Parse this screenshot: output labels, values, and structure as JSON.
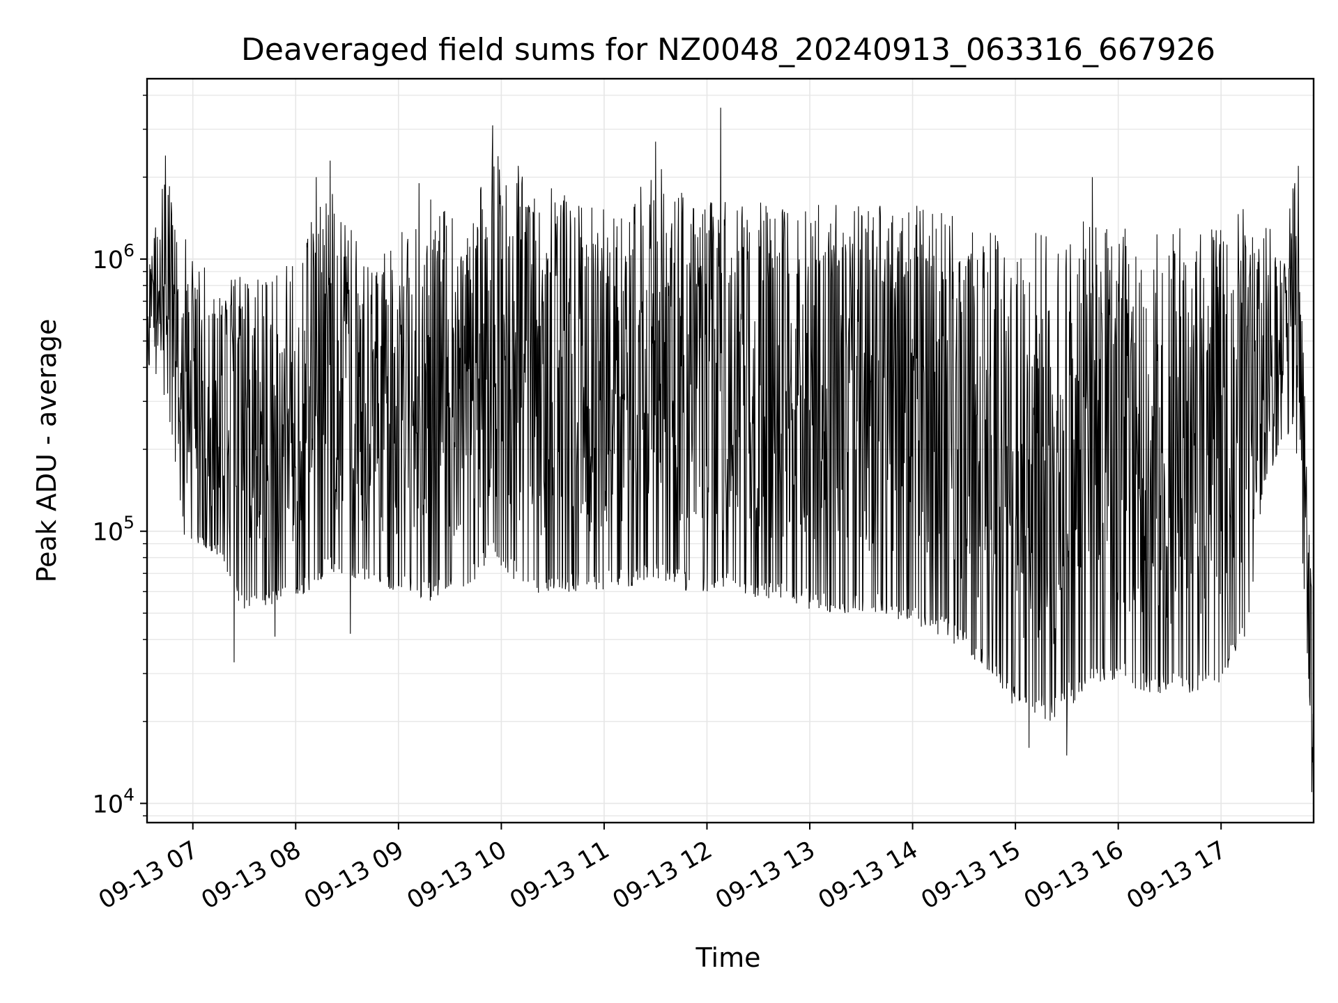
{
  "chart_data": {
    "type": "line",
    "title": "Deaveraged field sums for NZ0048_20240913_063316_667926",
    "xlabel": "Time",
    "ylabel": "Peak ADU - average",
    "yscale": "log",
    "ylim": [
      8500,
      4600000
    ],
    "xlim": [
      "2024-09-13 06:33:16",
      "2024-09-13 17:54:00"
    ],
    "grid": true,
    "line_color": "#000000",
    "x_ticks": [
      {
        "value": "2024-09-13 07:00",
        "label": "09-13 07"
      },
      {
        "value": "2024-09-13 08:00",
        "label": "09-13 08"
      },
      {
        "value": "2024-09-13 09:00",
        "label": "09-13 09"
      },
      {
        "value": "2024-09-13 10:00",
        "label": "09-13 10"
      },
      {
        "value": "2024-09-13 11:00",
        "label": "09-13 11"
      },
      {
        "value": "2024-09-13 12:00",
        "label": "09-13 12"
      },
      {
        "value": "2024-09-13 13:00",
        "label": "09-13 13"
      },
      {
        "value": "2024-09-13 14:00",
        "label": "09-13 14"
      },
      {
        "value": "2024-09-13 15:00",
        "label": "09-13 15"
      },
      {
        "value": "2024-09-13 16:00",
        "label": "09-13 16"
      },
      {
        "value": "2024-09-13 17:00",
        "label": "09-13 17"
      }
    ],
    "y_ticks": [
      {
        "value": 10000,
        "base": "10",
        "exp": "4"
      },
      {
        "value": 100000,
        "base": "10",
        "exp": "5"
      },
      {
        "value": 1000000,
        "base": "10",
        "exp": "6"
      }
    ],
    "envelope": [
      {
        "t": "2024-09-13 06:33",
        "low": 420000,
        "high": 850000
      },
      {
        "t": "2024-09-13 06:45",
        "low": 300000,
        "high": 2400000
      },
      {
        "t": "2024-09-13 06:55",
        "low": 95000,
        "high": 1300000
      },
      {
        "t": "2024-09-13 07:15",
        "low": 80000,
        "high": 800000
      },
      {
        "t": "2024-09-13 07:30",
        "low": 50000,
        "high": 900000
      },
      {
        "t": "2024-09-13 08:00",
        "low": 55000,
        "high": 1000000
      },
      {
        "t": "2024-09-13 08:20",
        "low": 70000,
        "high": 2000000
      },
      {
        "t": "2024-09-13 08:40",
        "low": 65000,
        "high": 1000000
      },
      {
        "t": "2024-09-13 09:00",
        "low": 60000,
        "high": 1200000
      },
      {
        "t": "2024-09-13 09:20",
        "low": 55000,
        "high": 1900000
      },
      {
        "t": "2024-09-13 09:40",
        "low": 60000,
        "high": 1300000
      },
      {
        "t": "2024-09-13 09:55",
        "low": 80000,
        "high": 2600000
      },
      {
        "t": "2024-09-13 10:20",
        "low": 55000,
        "high": 2000000
      },
      {
        "t": "2024-09-13 10:45",
        "low": 60000,
        "high": 1600000
      },
      {
        "t": "2024-09-13 11:10",
        "low": 62000,
        "high": 1500000
      },
      {
        "t": "2024-09-13 11:30",
        "low": 65000,
        "high": 2400000
      },
      {
        "t": "2024-09-13 11:50",
        "low": 60000,
        "high": 1600000
      },
      {
        "t": "2024-09-13 12:10",
        "low": 60000,
        "high": 1700000
      },
      {
        "t": "2024-09-13 12:40",
        "low": 55000,
        "high": 1600000
      },
      {
        "t": "2024-09-13 13:10",
        "low": 50000,
        "high": 1700000
      },
      {
        "t": "2024-09-13 13:40",
        "low": 50000,
        "high": 1600000
      },
      {
        "t": "2024-09-13 14:00",
        "low": 45000,
        "high": 1600000
      },
      {
        "t": "2024-09-13 14:20",
        "low": 40000,
        "high": 1500000
      },
      {
        "t": "2024-09-13 14:40",
        "low": 32000,
        "high": 1300000
      },
      {
        "t": "2024-09-13 15:00",
        "low": 22000,
        "high": 1200000
      },
      {
        "t": "2024-09-13 15:20",
        "low": 20000,
        "high": 1300000
      },
      {
        "t": "2024-09-13 15:40",
        "low": 25000,
        "high": 1400000
      },
      {
        "t": "2024-09-13 16:00",
        "low": 28000,
        "high": 1400000
      },
      {
        "t": "2024-09-13 16:20",
        "low": 25000,
        "high": 1400000
      },
      {
        "t": "2024-09-13 16:40",
        "low": 25000,
        "high": 1300000
      },
      {
        "t": "2024-09-13 17:00",
        "low": 28000,
        "high": 1300000
      },
      {
        "t": "2024-09-13 17:15",
        "low": 40000,
        "high": 1600000
      },
      {
        "t": "2024-09-13 17:25",
        "low": 150000,
        "high": 1500000
      },
      {
        "t": "2024-09-13 17:35",
        "low": 200000,
        "high": 1000000
      },
      {
        "t": "2024-09-13 17:43",
        "low": 250000,
        "high": 2000000
      },
      {
        "t": "2024-09-13 17:48",
        "low": 70000,
        "high": 500000
      },
      {
        "t": "2024-09-13 17:54",
        "low": 12000,
        "high": 40000
      }
    ],
    "peaks": [
      {
        "t": "2024-09-13 06:44",
        "value": 2400000
      },
      {
        "t": "2024-09-13 08:12",
        "value": 2000000
      },
      {
        "t": "2024-09-13 08:20",
        "value": 2300000
      },
      {
        "t": "2024-09-13 09:12",
        "value": 1900000
      },
      {
        "t": "2024-09-13 09:55",
        "value": 3100000
      },
      {
        "t": "2024-09-13 10:10",
        "value": 2200000
      },
      {
        "t": "2024-09-13 11:30",
        "value": 2700000
      },
      {
        "t": "2024-09-13 12:08",
        "value": 3600000
      },
      {
        "t": "2024-09-13 15:45",
        "value": 2000000
      },
      {
        "t": "2024-09-13 17:45",
        "value": 2200000
      }
    ],
    "troughs": [
      {
        "t": "2024-09-13 07:24",
        "value": 33000
      },
      {
        "t": "2024-09-13 08:32",
        "value": 42000
      },
      {
        "t": "2024-09-13 07:48",
        "value": 41000
      },
      {
        "t": "2024-09-13 15:08",
        "value": 16000
      },
      {
        "t": "2024-09-13 15:30",
        "value": 15000
      },
      {
        "t": "2024-09-13 17:53",
        "value": 11000
      }
    ]
  }
}
